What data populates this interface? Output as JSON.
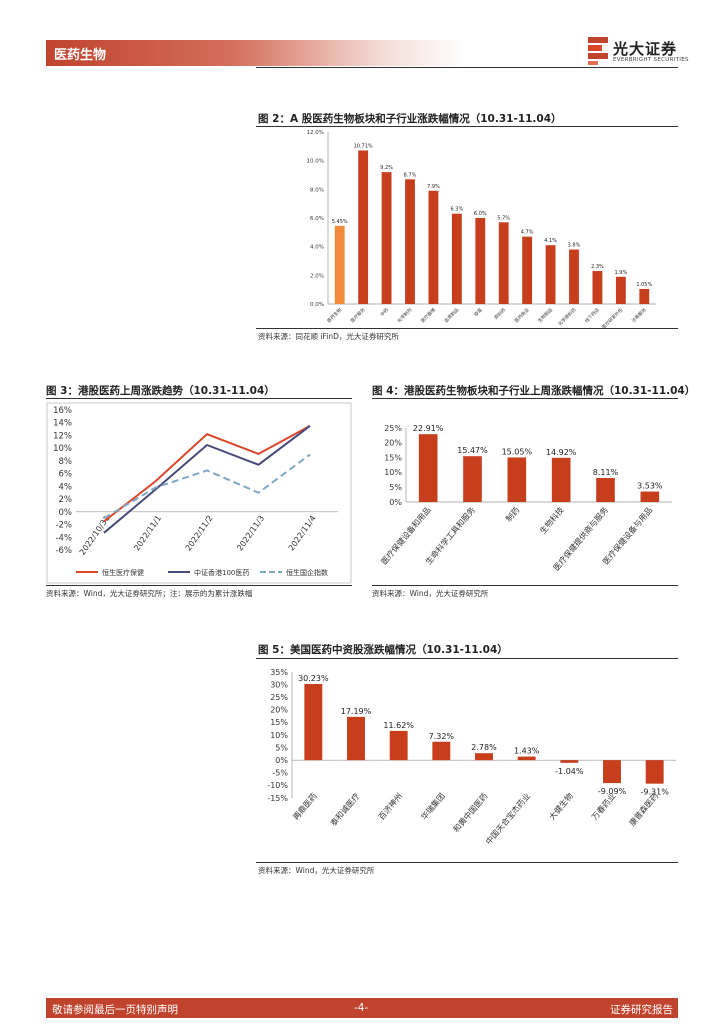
{
  "header": {
    "section": "医药生物",
    "logo_cn": "光大证券",
    "logo_en": "EVERBRIGHT SECURITIES",
    "accent": "#c0432d"
  },
  "figures": {
    "fig2": {
      "title": "图 2：A 股医药生物板块和子行业涨跌幅情况（10.31-11.04）",
      "source": "资料来源：同花顺 iFinD，光大证券研究所"
    },
    "fig3": {
      "title": "图 3：港股医药上周涨跌趋势（10.31-11.04）",
      "source": "资料来源：Wind，光大证券研究所；注：展示的为累计涨跌幅"
    },
    "fig4": {
      "title": "图 4：港股医药生物板块和子行业上周涨跌幅情况（10.31-11.04）",
      "source": "资料来源：Wind，光大证券研究所"
    },
    "fig5": {
      "title": "图 5：美国医药中资股涨跌幅情况（10.31-11.04）",
      "source": "资料来源：Wind，光大证券研究所"
    }
  },
  "footer": {
    "left": "敬请参阅最后一页特别声明",
    "center": "-4-",
    "right": "证券研究报告"
  },
  "chart_data": [
    {
      "id": "fig2",
      "type": "bar",
      "categories": [
        "医药生物",
        "医疗服务",
        "中药",
        "化学制剂",
        "医疗器械",
        "血液制品",
        "疫苗",
        "原料药",
        "医药商业",
        "生物制品",
        "化学原料药",
        "线下药店",
        "医疗研发外包",
        "诊断服务"
      ],
      "values": [
        5.45,
        10.71,
        9.2,
        8.7,
        7.9,
        6.3,
        6.0,
        5.7,
        4.7,
        4.1,
        3.8,
        2.3,
        1.9,
        1.05
      ],
      "labels": [
        "5.45%",
        "10.71%",
        "9.2%",
        "8.7%",
        "7.9%",
        "6.3%",
        "6.0%",
        "5.7%",
        "4.7%",
        "4.1%",
        "3.8%",
        "2.3%",
        "1.9%",
        "1.05%"
      ],
      "highlight_color": "#f08a3c",
      "bar_color": "#c73e1d",
      "ylim": [
        0,
        12
      ],
      "yticks": [
        "0.0%",
        "2.0%",
        "4.0%",
        "6.0%",
        "8.0%",
        "10.0%",
        "12.0%"
      ]
    },
    {
      "id": "fig3",
      "type": "line",
      "x": [
        "2022/10/31",
        "2022/11/1",
        "2022/11/2",
        "2022/11/3",
        "2022/11/4"
      ],
      "series": [
        {
          "name": "恒生医疗保健",
          "values": [
            -1.5,
            4.8,
            12.2,
            9.1,
            13.5
          ],
          "color": "#d9472b"
        },
        {
          "name": "中证香港100医药",
          "values": [
            -3.3,
            3.5,
            10.5,
            7.4,
            13.5
          ],
          "color": "#4a4a7a"
        },
        {
          "name": "恒生国企指数",
          "values": [
            -1.0,
            3.8,
            6.5,
            3.0,
            9.0
          ],
          "color": "#7fa8c4",
          "dash": true
        }
      ],
      "ylim": [
        -6,
        16
      ],
      "yticks": [
        "-6%",
        "-4%",
        "-2%",
        "0%",
        "2%",
        "4%",
        "6%",
        "8%",
        "10%",
        "12%",
        "14%",
        "16%"
      ]
    },
    {
      "id": "fig4",
      "type": "bar",
      "categories": [
        "医疗保健设备和用品",
        "生命科学工具和服务",
        "制药",
        "生物科技",
        "医疗保健提供商与服务",
        "医疗保健设备与用品"
      ],
      "values": [
        22.91,
        15.47,
        15.05,
        14.92,
        8.11,
        3.53
      ],
      "labels": [
        "22.91%",
        "15.47%",
        "15.05%",
        "14.92%",
        "8.11%",
        "3.53%"
      ],
      "bar_color": "#c73e1d",
      "ylim": [
        0,
        25
      ],
      "yticks": [
        "0%",
        "5%",
        "10%",
        "15%",
        "20%",
        "25%"
      ]
    },
    {
      "id": "fig5",
      "type": "bar",
      "categories": [
        "再鼎医药",
        "泰和诚医疗",
        "百济神州",
        "华瑞集团",
        "和黄中国医药",
        "中国天合宝杰药业",
        "大健生物",
        "万春药业",
        "康普森医药"
      ],
      "values": [
        30.23,
        17.19,
        11.62,
        7.32,
        2.78,
        1.43,
        -1.04,
        -9.09,
        -9.31
      ],
      "labels": [
        "30.23%",
        "17.19%",
        "11.62%",
        "7.32%",
        "2.78%",
        "1.43%",
        "-1.04%",
        "-9.09%",
        "-9.31%"
      ],
      "bar_color": "#c73e1d",
      "ylim": [
        -15,
        35
      ],
      "yticks": [
        "-15%",
        "-10%",
        "-5%",
        "0%",
        "5%",
        "10%",
        "15%",
        "20%",
        "25%",
        "30%",
        "35%"
      ]
    }
  ]
}
